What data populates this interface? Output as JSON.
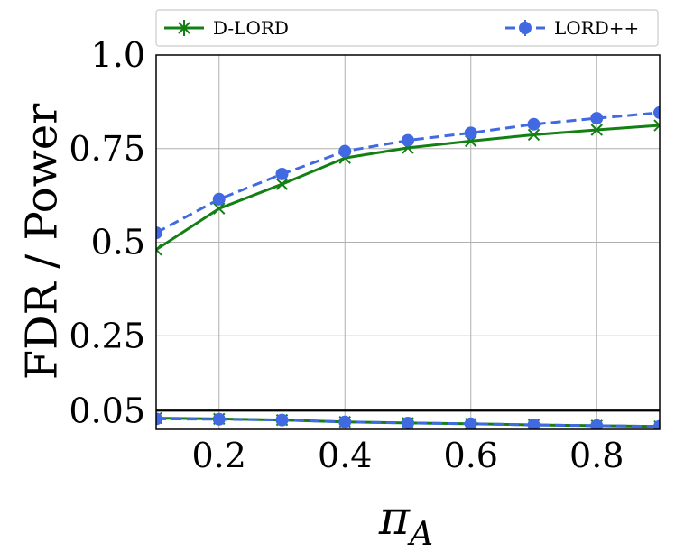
{
  "chart_data": {
    "type": "line",
    "xlabel": "π_A",
    "ylabel": "FDR / Power",
    "xlim": [
      0.1,
      0.9
    ],
    "ylim": [
      0.0,
      1.0
    ],
    "x": [
      0.1,
      0.2,
      0.3,
      0.4,
      0.5,
      0.6,
      0.7,
      0.8,
      0.9
    ],
    "x_ticks": [
      0.2,
      0.4,
      0.6,
      0.8
    ],
    "x_tick_labels": [
      "0.2",
      "0.4",
      "0.6",
      "0.8"
    ],
    "y_ticks": [
      0.05,
      0.25,
      0.5,
      0.75,
      1.0
    ],
    "y_tick_labels": [
      "0.05",
      "0.25",
      "0.5",
      "0.75",
      "1.0"
    ],
    "grid": true,
    "legend_placement": "top, above plot",
    "reference_line": {
      "y": 0.05,
      "color": "#000000"
    },
    "series": [
      {
        "name": "D-LORD",
        "metric": "power",
        "color": "#138013",
        "marker": "x",
        "dash": "solid",
        "values": [
          0.48,
          0.59,
          0.655,
          0.725,
          0.752,
          0.77,
          0.787,
          0.8,
          0.812
        ]
      },
      {
        "name": "LORD++",
        "metric": "power",
        "color": "#4169e1",
        "marker": "circle",
        "dash": "dashed",
        "values": [
          0.525,
          0.615,
          0.682,
          0.743,
          0.772,
          0.792,
          0.815,
          0.831,
          0.846
        ]
      },
      {
        "name": "D-LORD",
        "metric": "fdr",
        "color": "#138013",
        "marker": "x",
        "dash": "solid",
        "values": [
          0.03,
          0.028,
          0.025,
          0.02,
          0.017,
          0.015,
          0.012,
          0.01,
          0.008
        ]
      },
      {
        "name": "LORD++",
        "metric": "fdr",
        "color": "#4169e1",
        "marker": "circle",
        "dash": "dashed",
        "values": [
          0.028,
          0.027,
          0.025,
          0.02,
          0.017,
          0.015,
          0.012,
          0.01,
          0.008
        ]
      }
    ]
  }
}
